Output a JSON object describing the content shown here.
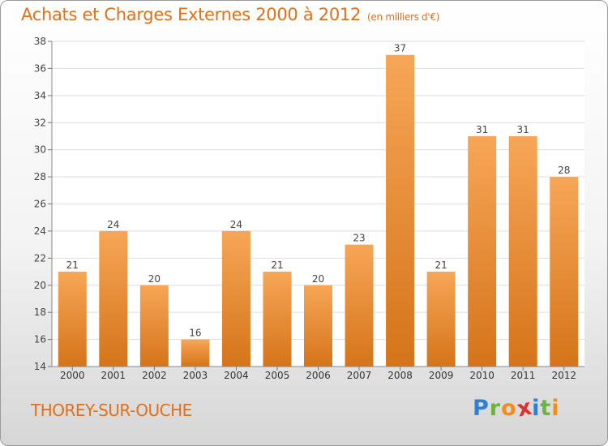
{
  "title": "Achats et Charges Externes 2000 à 2012",
  "unit": "(en milliers d'€)",
  "commune": "THOREY-SUR-OUCHE",
  "logo": {
    "letters": [
      "P",
      "r",
      "o",
      "x",
      "i",
      "t",
      "i"
    ],
    "colors": [
      "#2e7fd6",
      "#6db33f",
      "#f28c1b",
      "#d9342b",
      "#2e7fd6",
      "#6db33f",
      "#f28c1b"
    ]
  },
  "colors": {
    "bar": "#f08c2c",
    "bar_light": "#f7a657",
    "bar_dark": "#d5741a",
    "accent": "#e0701a"
  },
  "chart_data": {
    "type": "bar",
    "categories": [
      "2000",
      "2001",
      "2002",
      "2003",
      "2004",
      "2005",
      "2006",
      "2007",
      "2008",
      "2009",
      "2010",
      "2011",
      "2012"
    ],
    "values": [
      21,
      24,
      20,
      16,
      24,
      21,
      20,
      23,
      37,
      21,
      31,
      31,
      28
    ],
    "ylim": [
      14,
      38
    ],
    "yticks": [
      14,
      16,
      18,
      20,
      22,
      24,
      26,
      28,
      30,
      32,
      34,
      36,
      38
    ],
    "grid": true
  }
}
